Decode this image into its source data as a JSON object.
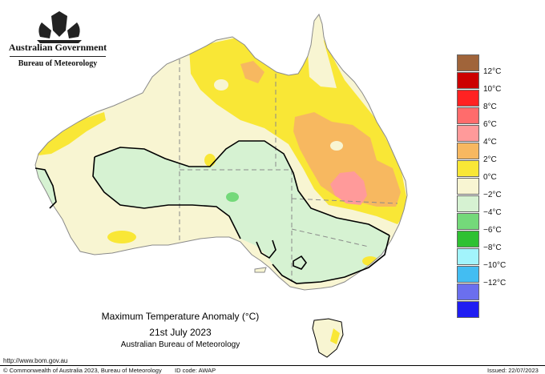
{
  "header": {
    "government": "Australian Government",
    "bureau": "Bureau of Meteorology"
  },
  "legend": {
    "items": [
      {
        "label": "",
        "color": "#a0643a"
      },
      {
        "label": "12°C",
        "color": "#cc0000"
      },
      {
        "label": "10°C",
        "color": "#ff2222"
      },
      {
        "label": "8°C",
        "color": "#ff6c6c"
      },
      {
        "label": "6°C",
        "color": "#ff9a9a"
      },
      {
        "label": "4°C",
        "color": "#f7b860"
      },
      {
        "label": "2°C",
        "color": "#f9e736"
      },
      {
        "label": "0°C",
        "color": "#f8f5d2"
      },
      {
        "label": "−2°C",
        "color": "#d6f2d2"
      },
      {
        "label": "−4°C",
        "color": "#74d97a"
      },
      {
        "label": "−6°C",
        "color": "#2fc132"
      },
      {
        "label": "−8°C",
        "color": "#a2f4fc"
      },
      {
        "label": "−10°C",
        "color": "#43bdf2"
      },
      {
        "label": "−12°C",
        "color": "#6b6fee"
      },
      {
        "label": "",
        "color": "#1f1df2"
      }
    ]
  },
  "map_title": {
    "line1": "Maximum Temperature Anomaly (°C)",
    "line2": "21st July 2023",
    "line3": "Australian Bureau of Meteorology"
  },
  "footer": {
    "url": "http://www.bom.gov.au",
    "copyright": "© Commonwealth of Australia 2023, Bureau of Meteorology",
    "id_code": "ID code: AWAP",
    "issued": "Issued: 22/07/2023"
  }
}
